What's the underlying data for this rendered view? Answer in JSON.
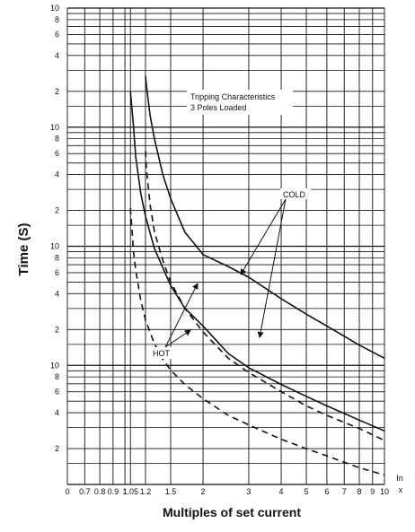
{
  "chart_data": {
    "type": "line",
    "title": "",
    "xlabel": "Multiples of set current",
    "ylabel": "Time (S)",
    "x_unit_label": "In",
    "x_axis_end_label": "x",
    "x_scale": "log",
    "y_scale": "log",
    "xlim": [
      0.6,
      10
    ],
    "ylim_decades": 4,
    "grid": true,
    "x_ticks": [
      {
        "v": 0.6,
        "label": "0"
      },
      {
        "v": 0.7,
        "label": "0.7"
      },
      {
        "v": 0.8,
        "label": "0.8"
      },
      {
        "v": 0.9,
        "label": "0.9"
      },
      {
        "v": 1.0,
        "label": "1"
      },
      {
        "v": 1.05,
        "label": "1.05"
      },
      {
        "v": 1.2,
        "label": "1.2"
      },
      {
        "v": 1.5,
        "label": "1.5"
      },
      {
        "v": 2,
        "label": "2"
      },
      {
        "v": 3,
        "label": "3"
      },
      {
        "v": 4,
        "label": "4"
      },
      {
        "v": 5,
        "label": "5"
      },
      {
        "v": 6,
        "label": "6"
      },
      {
        "v": 7,
        "label": "7"
      },
      {
        "v": 8,
        "label": "8"
      },
      {
        "v": 9,
        "label": "9"
      },
      {
        "v": 10,
        "label": "10"
      }
    ],
    "y_tick_labels": [
      "2",
      "4",
      "6",
      "8",
      "10"
    ],
    "annotation_text": [
      "Tripping Characteristics",
      "3 Poles Loaded"
    ],
    "annotation_labels": {
      "cold": "COLD",
      "hot": "HOT"
    },
    "series": [
      {
        "style": "solid",
        "x": [
          1.2,
          1.21,
          1.25,
          1.3,
          1.4,
          1.5,
          1.7,
          2,
          2.5,
          3,
          4,
          5,
          6,
          8,
          10
        ],
        "y": [
          3.43,
          3.35,
          3.1,
          2.9,
          2.6,
          2.4,
          2.12,
          1.93,
          1.83,
          1.74,
          1.56,
          1.43,
          1.33,
          1.17,
          1.06
        ]
      },
      {
        "style": "solid",
        "x": [
          1.05,
          1.08,
          1.1,
          1.15,
          1.2,
          1.3,
          1.4,
          1.5,
          1.7,
          2,
          2.5,
          3,
          4,
          5,
          6,
          8,
          10
        ],
        "y": [
          3.3,
          3.0,
          2.75,
          2.45,
          2.25,
          1.98,
          1.82,
          1.67,
          1.48,
          1.33,
          1.1,
          0.98,
          0.84,
          0.74,
          0.66,
          0.54,
          0.45
        ]
      },
      {
        "style": "dashed",
        "x": [
          1.2,
          1.21,
          1.25,
          1.3,
          1.4,
          1.5,
          1.7,
          2,
          2.5,
          3,
          4,
          5,
          6,
          8,
          10
        ],
        "y": [
          2.8,
          2.65,
          2.35,
          2.12,
          1.88,
          1.7,
          1.48,
          1.28,
          1.06,
          0.94,
          0.78,
          0.66,
          0.58,
          0.47,
          0.37
        ]
      },
      {
        "style": "dashed",
        "x": [
          1.05,
          1.08,
          1.1,
          1.15,
          1.2,
          1.3,
          1.4,
          1.5,
          1.7,
          2,
          2.5,
          3,
          4,
          5,
          6,
          8,
          10
        ],
        "y": [
          2.32,
          1.95,
          1.8,
          1.55,
          1.38,
          1.18,
          1.05,
          0.96,
          0.84,
          0.72,
          0.58,
          0.5,
          0.38,
          0.3,
          0.24,
          0.14,
          0.08
        ]
      }
    ]
  }
}
